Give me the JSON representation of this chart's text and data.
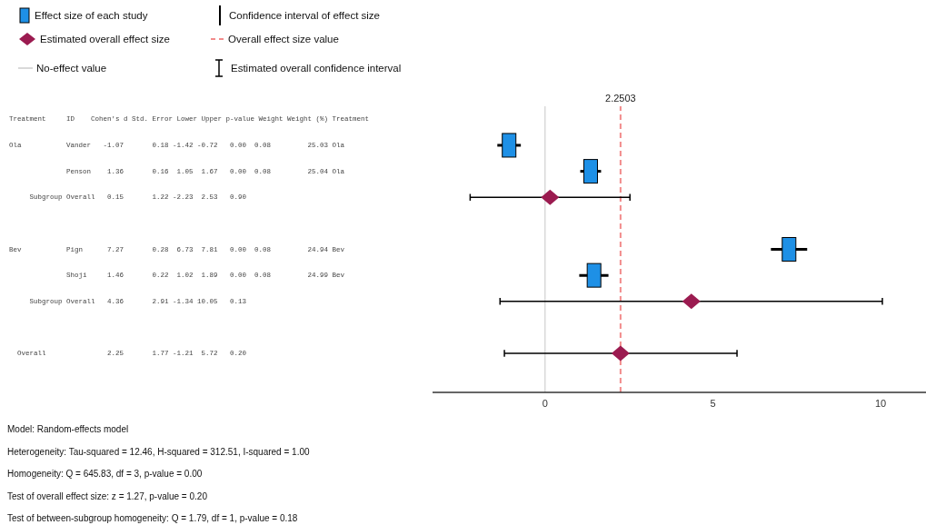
{
  "chart_data": {
    "type": "scatter",
    "orientation": "horizontal",
    "categories": [
      null,
      null,
      null,
      null,
      null,
      null,
      null,
      null,
      null,
      null,
      null
    ],
    "series": [
      {
        "name": "Effect size of each study",
        "color": "#1e90e6",
        "marker": "square",
        "values": [
          null,
          -1.07,
          1.36,
          null,
          null,
          7.27,
          1.46,
          null,
          null,
          null,
          null
        ],
        "errors": [
          null,
          [
            -1.42,
            -0.72
          ],
          [
            1.05,
            1.67
          ],
          null,
          null,
          [
            6.73,
            7.81
          ],
          [
            1.02,
            1.89
          ],
          null,
          null,
          null,
          null
        ]
      },
      {
        "name": "Estimated overall effect size",
        "color": "#9b1b50",
        "marker": "diamond",
        "values": [
          null,
          null,
          null,
          0.15,
          null,
          null,
          null,
          4.36,
          null,
          2.25,
          null
        ],
        "errors": [
          null,
          null,
          null,
          [
            -2.23,
            2.53
          ],
          null,
          null,
          null,
          [
            -1.34,
            10.05
          ],
          null,
          [
            -1.21,
            5.72
          ],
          null
        ]
      }
    ],
    "xlim": [
      -3.35,
      11.35
    ],
    "xticks": [
      0,
      5,
      10
    ],
    "grid": false,
    "legend": "top left",
    "ref_lines": [
      {
        "axis": "x",
        "value": 0,
        "label": "No-effect value",
        "color": "#d9d9d9"
      },
      {
        "axis": "x",
        "value": 2.2503,
        "label": "2.2503",
        "color": "#f28b8b",
        "line_style": "dashed"
      }
    ],
    "annotations": [
      "Confidence interval of effect size",
      "Overall effect size value",
      "Estimated overall confidence interval",
      "Treatment     ID    Cohen's d Std. Error Lower Upper p-value Weight Weight (%) Treatment",
      "Ola           Vander   -1.07       0.18 -1.42 -0.72   0.00  0.08         25.03 Ola",
      "              Penson    1.36       0.16  1.05  1.67   0.00  0.08         25.04 Ola",
      "     Subgroup Overall   0.15       1.22 -2.23  2.53   0.90",
      "Bev           Pign      7.27       0.28  6.73  7.81   0.00  0.08         24.94 Bev",
      "              Shoji     1.46       0.22  1.02  1.89   0.00  0.08         24.99 Bev",
      "     Subgroup Overall   4.36       2.91 -1.34 10.05   0.13",
      "  Overall               2.25       1.77 -1.21  5.72   0.20",
      "Model: Random-effects model",
      "Heterogeneity: Tau-squared = 12.46, H-squared = 312.51, I-squared = 1.00",
      "Homogeneity: Q = 645.83, df = 3, p-value = 0.00",
      "Test of overall effect size: z = 1.27, p-value = 0.20",
      "Test of between-subgroup homogeneity: Q = 1.79, df = 1, p-value = 0.18"
    ]
  }
}
